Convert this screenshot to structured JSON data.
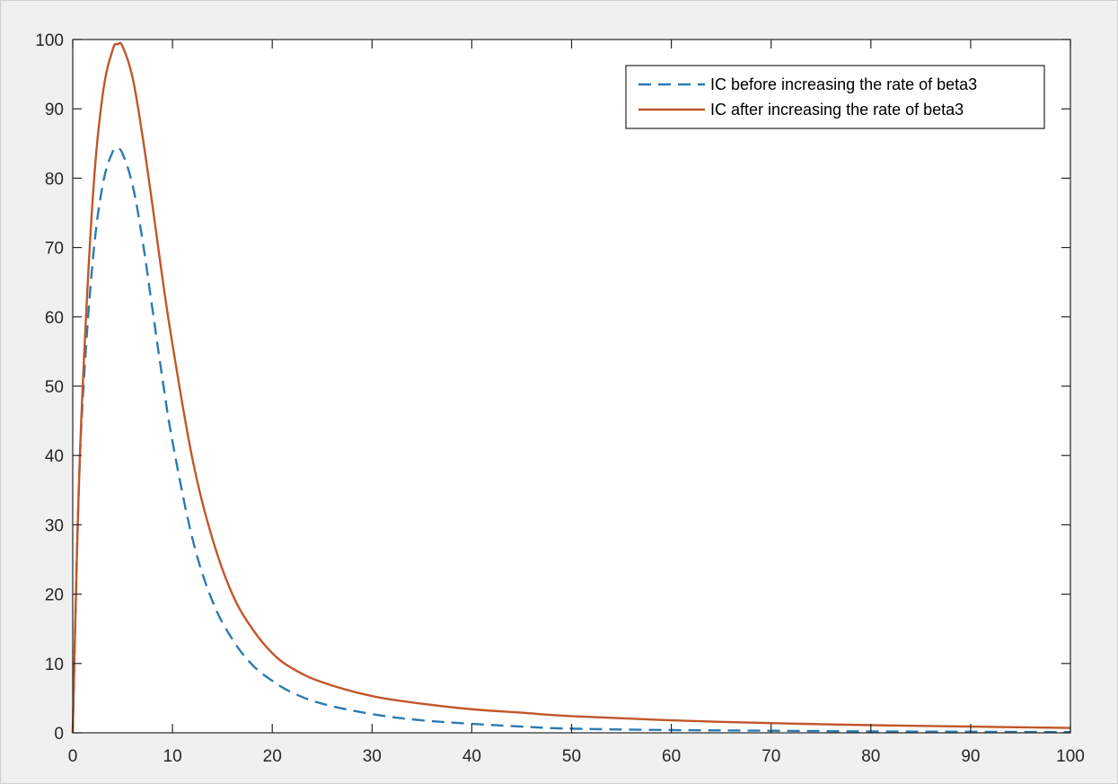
{
  "chart_data": {
    "type": "line",
    "title": "",
    "xlabel": "",
    "ylabel": "",
    "xlim": [
      0,
      100
    ],
    "ylim": [
      0,
      100
    ],
    "x_ticks": [
      0,
      10,
      20,
      30,
      40,
      50,
      60,
      70,
      80,
      90,
      100
    ],
    "y_ticks": [
      0,
      10,
      20,
      30,
      40,
      50,
      60,
      70,
      80,
      90,
      100
    ],
    "x_tick_labels": [
      "0",
      "10",
      "20",
      "30",
      "40",
      "50",
      "60",
      "70",
      "80",
      "90",
      "100"
    ],
    "y_tick_labels": [
      "0",
      "10",
      "20",
      "30",
      "40",
      "50",
      "60",
      "70",
      "80",
      "90",
      "100"
    ],
    "grid": false,
    "legend_position": "top-right",
    "series": [
      {
        "name": "IC before increasing the rate of beta3",
        "color": "#2b7bb1",
        "line_style": "dashed",
        "x": [
          0,
          0.5,
          1,
          2,
          3,
          4,
          4.5,
          5,
          6,
          7,
          8,
          9,
          10,
          12,
          14,
          16,
          18,
          20,
          22,
          25,
          30,
          35,
          40,
          45,
          50,
          60,
          70,
          80,
          90,
          100
        ],
        "y": [
          0,
          30,
          48,
          68,
          79,
          83.8,
          84.2,
          83.5,
          79,
          71,
          61,
          51,
          42,
          28,
          19,
          13.5,
          9.8,
          7.5,
          5.8,
          4.2,
          2.7,
          1.8,
          1.3,
          0.9,
          0.6,
          0.4,
          0.3,
          0.2,
          0.15,
          0.1
        ]
      },
      {
        "name": "IC after increasing the rate of beta3",
        "color": "#c1562a",
        "line_style": "solid",
        "x": [
          0,
          0.5,
          1,
          2,
          3,
          4,
          4.5,
          5,
          6,
          7,
          8,
          9,
          10,
          12,
          14,
          16,
          18,
          20,
          22,
          25,
          30,
          35,
          40,
          45,
          50,
          60,
          70,
          80,
          90,
          100
        ],
        "y": [
          0,
          30,
          50,
          77,
          92,
          98.5,
          99.3,
          99,
          94.5,
          86,
          76,
          65.5,
          56,
          39.5,
          28,
          20,
          15,
          11.5,
          9.3,
          7.3,
          5.3,
          4.2,
          3.4,
          2.9,
          2.4,
          1.8,
          1.4,
          1.1,
          0.9,
          0.7
        ]
      }
    ]
  }
}
